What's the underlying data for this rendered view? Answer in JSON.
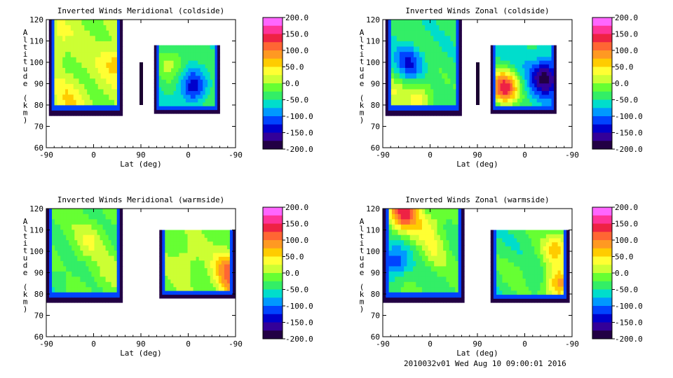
{
  "footer": "2010032v01 Wed Aug 10 09:00:01 2016",
  "colorbar": {
    "ticks": [
      "200.0",
      "150.0",
      "100.0",
      "50.0",
      "0.0",
      "-50.0",
      "-100.0",
      "-150.0",
      "-200.0"
    ],
    "range": [
      -200,
      200
    ],
    "colors": [
      "#ff66ff",
      "#ff3399",
      "#ee2244",
      "#ff6633",
      "#ff9922",
      "#ffcc00",
      "#ffff33",
      "#ccff33",
      "#66ff33",
      "#33ee66",
      "#00ddcc",
      "#0099ff",
      "#0044ff",
      "#0000cc",
      "#330099",
      "#220044"
    ]
  },
  "chart_data": [
    {
      "type": "heatmap",
      "title": "Inverted Winds Meridional (coldside)",
      "xlabel": "Lat (deg)",
      "ylabel": "Altitude (km)",
      "xticks": [
        "-90",
        "0",
        "90",
        "0",
        "-90"
      ],
      "yticks": [
        "120",
        "110",
        "100",
        "90",
        "80",
        "70",
        "60"
      ],
      "ylim": [
        60,
        120
      ],
      "cmap_range": [
        -200,
        200
      ],
      "regions": [
        {
          "x": [
            -85,
            55
          ],
          "alt": [
            75,
            120
          ],
          "base": 5,
          "blobs": [
            {
              "x": 45,
              "alt": 100,
              "v": 60
            },
            {
              "x": -50,
              "alt": 82,
              "v": 40
            },
            {
              "x": -75,
              "alt": 110,
              "v": 30
            }
          ]
        },
        {
          "x": 90,
          "alt": [
            80,
            100
          ],
          "base": -150,
          "blobs": []
        },
        {
          "x": [
            115,
            240
          ],
          "alt": [
            76,
            108
          ],
          "base": -50,
          "blobs": [
            {
              "x": 150,
              "alt": 100,
              "v": 60
            },
            {
              "x": 190,
              "alt": 88,
              "v": -90
            },
            {
              "x": 220,
              "alt": 84,
              "v": 40
            }
          ]
        }
      ]
    },
    {
      "type": "heatmap",
      "title": "Inverted Winds Zonal (coldside)",
      "xlabel": "Lat (deg)",
      "ylabel": "Altitude (km)",
      "xticks": [
        "-90",
        "0",
        "90",
        "0",
        "-90"
      ],
      "yticks": [
        "120",
        "110",
        "100",
        "90",
        "80",
        "70",
        "60"
      ],
      "ylim": [
        60,
        120
      ],
      "cmap_range": [
        -200,
        200
      ],
      "regions": [
        {
          "x": [
            -85,
            60
          ],
          "alt": [
            75,
            120
          ],
          "base": -40,
          "blobs": [
            {
              "x": -20,
              "alt": 84,
              "v": 70
            },
            {
              "x": -80,
              "alt": 85,
              "v": 70
            },
            {
              "x": -40,
              "alt": 100,
              "v": -80
            }
          ]
        },
        {
          "x": 90,
          "alt": [
            80,
            100
          ],
          "base": -150,
          "blobs": []
        },
        {
          "x": [
            115,
            240
          ],
          "alt": [
            76,
            108
          ],
          "base": -60,
          "blobs": [
            {
              "x": 140,
              "alt": 88,
              "v": 200
            },
            {
              "x": 220,
              "alt": 93,
              "v": -130
            }
          ]
        }
      ]
    },
    {
      "type": "heatmap",
      "title": "Inverted Winds Meridional (warmside)",
      "xlabel": "Lat (deg)",
      "ylabel": "Altitude (km)",
      "xticks": [
        "-90",
        "0",
        "90",
        "0",
        "-90"
      ],
      "yticks": [
        "120",
        "110",
        "100",
        "90",
        "80",
        "70",
        "60"
      ],
      "ylim": [
        60,
        120
      ],
      "cmap_range": [
        -200,
        200
      ],
      "regions": [
        {
          "x": [
            -90,
            55
          ],
          "alt": [
            76,
            120
          ],
          "base": -20,
          "blobs": [
            {
              "x": -10,
              "alt": 105,
              "v": 40
            },
            {
              "x": 30,
              "alt": 90,
              "v": 30
            },
            {
              "x": -70,
              "alt": 86,
              "v": -30
            }
          ]
        },
        {
          "x": [
            125,
            270
          ],
          "alt": [
            78,
            110
          ],
          "base": -10,
          "blobs": [
            {
              "x": 175,
              "alt": 96,
              "v": 30
            },
            {
              "x": 255,
              "alt": 92,
              "v": 90
            },
            {
              "x": 265,
              "alt": 83,
              "v": 70
            }
          ]
        }
      ]
    },
    {
      "type": "heatmap",
      "title": "Inverted Winds Zonal (warmside)",
      "xlabel": "Lat (deg)",
      "ylabel": "Altitude (km)",
      "xticks": [
        "-90",
        "0",
        "90",
        "0",
        "-90"
      ],
      "yticks": [
        "120",
        "110",
        "100",
        "90",
        "80",
        "70",
        "60"
      ],
      "ylim": [
        60,
        120
      ],
      "cmap_range": [
        -200,
        200
      ],
      "regions": [
        {
          "x": [
            -90,
            65
          ],
          "alt": [
            76,
            120
          ],
          "base": -30,
          "blobs": [
            {
              "x": -50,
              "alt": 118,
              "v": 160
            },
            {
              "x": -5,
              "alt": 112,
              "v": 60
            },
            {
              "x": -70,
              "alt": 95,
              "v": -90
            },
            {
              "x": 10,
              "alt": 100,
              "v": 40
            }
          ]
        },
        {
          "x": [
            115,
            265
          ],
          "alt": [
            76,
            110
          ],
          "base": -40,
          "blobs": [
            {
              "x": 240,
              "alt": 102,
              "v": 100
            },
            {
              "x": 245,
              "alt": 84,
              "v": 120
            },
            {
              "x": 160,
              "alt": 90,
              "v": 20
            }
          ]
        }
      ]
    }
  ]
}
